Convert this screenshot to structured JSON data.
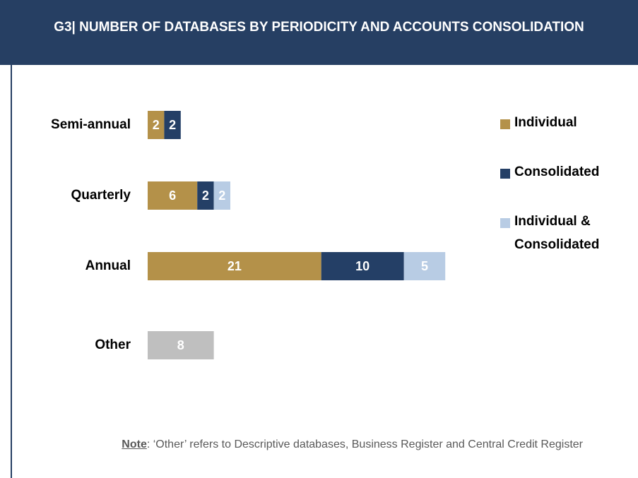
{
  "chart_data": {
    "type": "stacked-bar-horizontal",
    "title": "G3| NUMBER OF DATABASES BY PERIODICITY AND ACCOUNTS CONSOLIDATION",
    "categories": [
      "Semi-annual",
      "Quarterly",
      "Annual",
      "Other"
    ],
    "series": [
      {
        "name": "Individual",
        "color": "#b49149",
        "values": [
          2,
          6,
          21,
          null
        ]
      },
      {
        "name": "Consolidated",
        "color": "#243f66",
        "values": [
          2,
          2,
          10,
          null
        ]
      },
      {
        "name": "Individual & Consolidated",
        "color": "#b8cce4",
        "values": [
          null,
          2,
          5,
          null
        ]
      },
      {
        "color": "#bfbfbf",
        "values": [
          null,
          null,
          null,
          8
        ]
      }
    ],
    "note_label": "Note",
    "note": ": ‘Other’ refers to Descriptive databases, Business Register and Central Credit Register"
  }
}
